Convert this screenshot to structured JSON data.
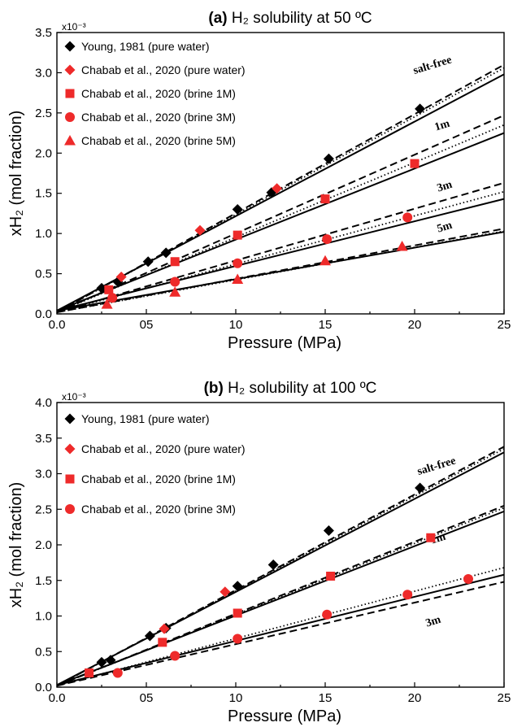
{
  "chart_data": [
    {
      "type": "scatter",
      "panel": "a",
      "title_bold": "(a)",
      "title": "H₂ solubility at 50 ºC",
      "xlabel": "Pressure (MPa)",
      "ylabel": "xH₂ (mol fraction)",
      "y_scale_label": "x10⁻³",
      "xlim": [
        0,
        25
      ],
      "ylim": [
        0,
        3.5
      ],
      "xticks": [
        0,
        5,
        10,
        15,
        20,
        25
      ],
      "xtick_labels": [
        "0.0",
        "05",
        "10",
        "15",
        "20",
        "25"
      ],
      "yticks": [
        0,
        0.5,
        1,
        1.5,
        2,
        2.5,
        3,
        3.5
      ],
      "ytick_labels": [
        "0.0",
        "0.5",
        "1.0",
        "1.5",
        "2.0",
        "2.5",
        "3.0",
        "3.5"
      ],
      "legend_position": "top-left",
      "series": [
        {
          "name": "Young, 1981 (pure water)",
          "marker": "diamond",
          "color": "#000000",
          "x": [
            2.5,
            3.4,
            5.1,
            6.1,
            10.1,
            12.0,
            15.2,
            20.3
          ],
          "y": [
            0.32,
            0.4,
            0.65,
            0.76,
            1.3,
            1.51,
            1.93,
            2.55
          ]
        },
        {
          "name": "Chabab et al., 2020 (pure water)",
          "marker": "diamond",
          "color": "#ee2a2a",
          "x": [
            3.6,
            8.0,
            12.3
          ],
          "y": [
            0.46,
            1.04,
            1.56
          ]
        },
        {
          "name": "Chabab et al., 2020 (brine 1M)",
          "marker": "square",
          "color": "#ee2a2a",
          "x": [
            2.9,
            6.6,
            10.1,
            15.0,
            20.0
          ],
          "y": [
            0.3,
            0.65,
            0.98,
            1.43,
            1.87
          ]
        },
        {
          "name": "Chabab et al., 2020 (brine 3M)",
          "marker": "circle",
          "color": "#ee2a2a",
          "x": [
            3.1,
            6.6,
            10.1,
            15.1,
            19.6
          ],
          "y": [
            0.2,
            0.4,
            0.63,
            0.93,
            1.2
          ]
        },
        {
          "name": "Chabab et al., 2020 (brine 5M)",
          "marker": "triangle",
          "color": "#ee2a2a",
          "x": [
            2.8,
            6.6,
            10.1,
            15.0,
            19.3
          ],
          "y": [
            0.12,
            0.27,
            0.43,
            0.66,
            0.84
          ]
        }
      ],
      "curves": [
        {
          "label": "salt-free",
          "x": [
            0,
            25
          ],
          "solid": [
            0.04,
            2.98
          ],
          "dashed": [
            0.02,
            3.1
          ],
          "dotted": [
            0.02,
            3.06
          ]
        },
        {
          "label": "1m",
          "x": [
            0,
            25
          ],
          "solid": [
            0.04,
            2.25
          ],
          "dashed": [
            0.02,
            2.47
          ],
          "dotted": [
            0.02,
            2.35
          ]
        },
        {
          "label": "3m",
          "x": [
            0,
            25
          ],
          "solid": [
            0.04,
            1.43
          ],
          "dashed": [
            0.02,
            1.63
          ],
          "dotted": [
            0.02,
            1.52
          ]
        },
        {
          "label": "5m",
          "x": [
            0,
            25
          ],
          "solid": [
            0.04,
            1.02
          ],
          "dashed": [
            0.02,
            1.06
          ],
          "dotted": [
            0.02,
            1.03
          ]
        }
      ]
    },
    {
      "type": "scatter",
      "panel": "b",
      "title_bold": "(b)",
      "title": "H₂ solubility at 100 ºC",
      "xlabel": "Pressure (MPa)",
      "ylabel": "xH₂ (mol fraction)",
      "y_scale_label": "x10⁻³",
      "xlim": [
        0,
        25
      ],
      "ylim": [
        0,
        4.0
      ],
      "xticks": [
        0,
        5,
        10,
        15,
        20,
        25
      ],
      "xtick_labels": [
        "0.0",
        "05",
        "10",
        "15",
        "20",
        "25"
      ],
      "yticks": [
        0,
        0.5,
        1,
        1.5,
        2,
        2.5,
        3,
        3.5,
        4
      ],
      "ytick_labels": [
        "0.0",
        "0.5",
        "1.0",
        "1.5",
        "2.0",
        "2.5",
        "3.0",
        "3.5",
        "4.0"
      ],
      "legend_position": "top-left",
      "series": [
        {
          "name": "Young, 1981 (pure water)",
          "marker": "diamond",
          "color": "#000000",
          "x": [
            2.5,
            3.0,
            5.2,
            6.1,
            10.1,
            12.1,
            15.2,
            20.3
          ],
          "y": [
            0.35,
            0.38,
            0.72,
            0.83,
            1.42,
            1.72,
            2.2,
            2.8
          ]
        },
        {
          "name": "Chabab et al., 2020 (pure water)",
          "marker": "diamond",
          "color": "#ee2a2a",
          "x": [
            6.0,
            9.4
          ],
          "y": [
            0.82,
            1.34
          ]
        },
        {
          "name": "Chabab et al., 2020 (brine 1M)",
          "marker": "square",
          "color": "#ee2a2a",
          "x": [
            1.8,
            5.9,
            10.1,
            15.3,
            20.9
          ],
          "y": [
            0.2,
            0.63,
            1.04,
            1.56,
            2.1
          ]
        },
        {
          "name": "Chabab et al., 2020 (brine 3M)",
          "marker": "circle",
          "color": "#ee2a2a",
          "x": [
            3.4,
            6.6,
            10.1,
            15.1,
            19.6,
            23.0
          ],
          "y": [
            0.2,
            0.44,
            0.68,
            1.02,
            1.3,
            1.52
          ]
        }
      ],
      "curves": [
        {
          "label": "salt-free",
          "x": [
            0,
            25
          ],
          "solid": [
            0.03,
            3.3
          ],
          "dashed": [
            0.02,
            3.38
          ],
          "dotted": [
            0.02,
            3.35
          ]
        },
        {
          "label": "1m",
          "x": [
            0,
            25
          ],
          "solid": [
            0.03,
            2.47
          ],
          "dashed": [
            0.02,
            2.55
          ],
          "dotted": [
            0.02,
            2.52
          ]
        },
        {
          "label": "3m",
          "x": [
            0,
            25
          ],
          "solid": [
            0.03,
            1.58
          ],
          "dashed": [
            0.02,
            1.48
          ],
          "dotted": [
            0.02,
            1.68
          ]
        }
      ]
    }
  ]
}
